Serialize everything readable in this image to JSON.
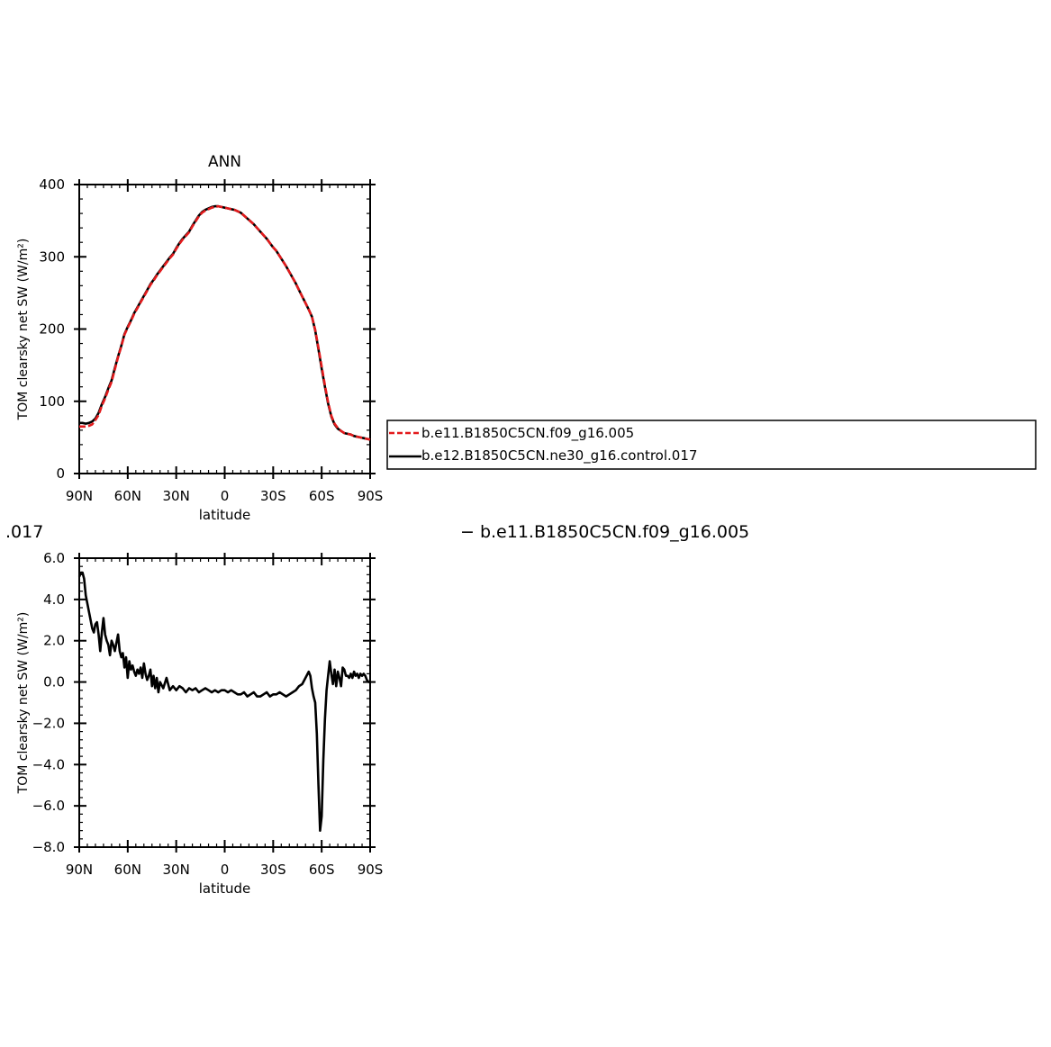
{
  "chart_data": [
    {
      "type": "line",
      "title": "ANN",
      "xlabel": "latitude",
      "ylabel": "TOM clearsky net SW (W/m²)",
      "xlim": [
        90,
        -90
      ],
      "ylim": [
        0,
        400
      ],
      "xticks": [
        {
          "v": 90,
          "label": "90N"
        },
        {
          "v": 60,
          "label": "60N"
        },
        {
          "v": 30,
          "label": "30N"
        },
        {
          "v": 0,
          "label": "0"
        },
        {
          "v": -30,
          "label": "30S"
        },
        {
          "v": -60,
          "label": "60S"
        },
        {
          "v": -90,
          "label": "90S"
        }
      ],
      "yticks": [
        {
          "v": 0,
          "label": "0"
        },
        {
          "v": 100,
          "label": "100"
        },
        {
          "v": 200,
          "label": "200"
        },
        {
          "v": 300,
          "label": "300"
        },
        {
          "v": 400,
          "label": "400"
        }
      ],
      "legend_position": "right",
      "series": [
        {
          "name": "b.e12.B1850C5CN.ne30_g16.control.017",
          "color": "#000000",
          "dash": "solid",
          "x": [
            90,
            88,
            86,
            84,
            82,
            80,
            78,
            76,
            74,
            72,
            70,
            68,
            66,
            64,
            62,
            60,
            58,
            56,
            54,
            52,
            50,
            48,
            46,
            44,
            42,
            40,
            38,
            36,
            34,
            32,
            30,
            28,
            26,
            24,
            22,
            20,
            18,
            16,
            14,
            12,
            10,
            8,
            6,
            4,
            2,
            0,
            -2,
            -4,
            -6,
            -8,
            -10,
            -12,
            -14,
            -16,
            -18,
            -20,
            -22,
            -24,
            -26,
            -28,
            -30,
            -32,
            -34,
            -36,
            -38,
            -40,
            -42,
            -44,
            -46,
            -48,
            -50,
            -52,
            -54,
            -56,
            -58,
            -60,
            -62,
            -64,
            -66,
            -68,
            -70,
            -72,
            -74,
            -76,
            -78,
            -80,
            -82,
            -84,
            -86,
            -88,
            -90
          ],
          "values": [
            70,
            70,
            69,
            70,
            72,
            76,
            84,
            96,
            106,
            118,
            129,
            146,
            162,
            177,
            193,
            203,
            212,
            222,
            230,
            238,
            246,
            254,
            262,
            268,
            275,
            281,
            287,
            293,
            299,
            304,
            312,
            319,
            325,
            330,
            335,
            343,
            350,
            357,
            362,
            365,
            367,
            369,
            370,
            370,
            369,
            368,
            367,
            366,
            365,
            363,
            361,
            357,
            353,
            349,
            345,
            340,
            335,
            330,
            325,
            319,
            313,
            308,
            301,
            294,
            287,
            279,
            271,
            263,
            254,
            245,
            236,
            227,
            217,
            198,
            172,
            145,
            120,
            97,
            79,
            68,
            62,
            59,
            56,
            55,
            54,
            52,
            51,
            50,
            49,
            48,
            47
          ]
        },
        {
          "name": "b.e11.B1850C5CN.f09_g16.005",
          "color": "#e31a1c",
          "dash": "dashed",
          "x": [
            90,
            88,
            86,
            84,
            82,
            80,
            78,
            76,
            74,
            72,
            70,
            68,
            66,
            64,
            62,
            60,
            58,
            56,
            54,
            52,
            50,
            48,
            46,
            44,
            42,
            40,
            38,
            36,
            34,
            32,
            30,
            28,
            26,
            24,
            22,
            20,
            18,
            16,
            14,
            12,
            10,
            8,
            6,
            4,
            2,
            0,
            -2,
            -4,
            -6,
            -8,
            -10,
            -12,
            -14,
            -16,
            -18,
            -20,
            -22,
            -24,
            -26,
            -28,
            -30,
            -32,
            -34,
            -36,
            -38,
            -40,
            -42,
            -44,
            -46,
            -48,
            -50,
            -52,
            -54,
            -56,
            -58,
            -60,
            -62,
            -64,
            -66,
            -68,
            -70,
            -72,
            -74,
            -76,
            -78,
            -80,
            -82,
            -84,
            -86,
            -88,
            -90
          ],
          "values": [
            65,
            65,
            65,
            66,
            68,
            74,
            81,
            94,
            104,
            116,
            127,
            144,
            161,
            176,
            192,
            202,
            211,
            221,
            229,
            237,
            245,
            253,
            261,
            267,
            274,
            280,
            286,
            292,
            298,
            303,
            311,
            318,
            324,
            329,
            334,
            342,
            349,
            356,
            361,
            364,
            366,
            368,
            369,
            370,
            369,
            368,
            367,
            366,
            365,
            363,
            361,
            357,
            353,
            349,
            345,
            340,
            335,
            330,
            325,
            319,
            313,
            308,
            301,
            294,
            287,
            279,
            271,
            263,
            254,
            245,
            236,
            227,
            217,
            199,
            174,
            148,
            122,
            99,
            80,
            69,
            63,
            59,
            56,
            55,
            54,
            52,
            51,
            50,
            49,
            48,
            47
          ]
        }
      ]
    },
    {
      "type": "line",
      "title": "",
      "xlabel": "latitude",
      "ylabel": "TOM clearsky net SW (W/m²)",
      "xlim": [
        90,
        -90
      ],
      "ylim": [
        -8,
        6
      ],
      "xticks": [
        {
          "v": 90,
          "label": "90N"
        },
        {
          "v": 60,
          "label": "60N"
        },
        {
          "v": 30,
          "label": "30N"
        },
        {
          "v": 0,
          "label": "0"
        },
        {
          "v": -30,
          "label": "30S"
        },
        {
          "v": -60,
          "label": "60S"
        },
        {
          "v": -90,
          "label": "90S"
        }
      ],
      "yticks": [
        {
          "v": -8,
          "label": "−8.0"
        },
        {
          "v": -6,
          "label": "−6.0"
        },
        {
          "v": -4,
          "label": "−4.0"
        },
        {
          "v": -2,
          "label": "−2.0"
        },
        {
          "v": 0,
          "label": "0.0"
        },
        {
          "v": 2,
          "label": "2.0"
        },
        {
          "v": 4,
          "label": "4.0"
        },
        {
          "v": 6,
          "label": "6.0"
        }
      ],
      "series": [
        {
          "color": "#000000",
          "dash": "solid",
          "x": [
            90,
            89,
            88,
            87,
            86,
            85,
            84,
            83,
            82,
            81,
            80,
            79,
            78,
            77,
            76,
            75,
            74,
            73,
            72,
            71,
            70,
            69,
            68,
            67,
            66,
            65,
            64,
            63,
            62,
            61,
            60,
            59,
            58,
            57,
            56,
            55,
            54,
            53,
            52,
            51,
            50,
            49,
            48,
            47,
            46,
            45,
            44,
            43,
            42,
            41,
            40,
            38,
            36,
            34,
            32,
            30,
            28,
            26,
            24,
            22,
            20,
            18,
            16,
            14,
            12,
            10,
            8,
            6,
            4,
            2,
            0,
            -2,
            -4,
            -6,
            -8,
            -10,
            -12,
            -14,
            -16,
            -18,
            -20,
            -22,
            -24,
            -26,
            -28,
            -30,
            -32,
            -34,
            -36,
            -38,
            -40,
            -42,
            -44,
            -46,
            -48,
            -50,
            -52,
            -53,
            -54,
            -55,
            -56,
            -57,
            -58,
            -59,
            -60,
            -61,
            -62,
            -63,
            -64,
            -65,
            -66,
            -67,
            -68,
            -69,
            -70,
            -71,
            -72,
            -73,
            -74,
            -75,
            -76,
            -77,
            -78,
            -79,
            -80,
            -81,
            -82,
            -83,
            -84,
            -85,
            -86,
            -87,
            -88,
            -89,
            -90
          ],
          "values": [
            5.1,
            5.3,
            5.3,
            5.0,
            4.2,
            3.8,
            3.4,
            3.0,
            2.6,
            2.4,
            2.8,
            2.9,
            2.3,
            1.5,
            2.4,
            3.1,
            2.3,
            2.0,
            1.8,
            1.3,
            2.0,
            1.8,
            1.5,
            1.9,
            2.3,
            1.5,
            1.2,
            1.4,
            0.7,
            1.2,
            0.2,
            1.0,
            0.6,
            0.8,
            0.5,
            0.3,
            0.6,
            0.4,
            0.7,
            0.2,
            0.9,
            0.4,
            0.1,
            0.3,
            0.6,
            -0.2,
            0.3,
            -0.3,
            0.2,
            -0.5,
            0.0,
            -0.3,
            0.2,
            -0.4,
            -0.2,
            -0.4,
            -0.2,
            -0.3,
            -0.5,
            -0.3,
            -0.4,
            -0.3,
            -0.5,
            -0.4,
            -0.3,
            -0.4,
            -0.5,
            -0.4,
            -0.5,
            -0.4,
            -0.4,
            -0.5,
            -0.4,
            -0.5,
            -0.6,
            -0.6,
            -0.5,
            -0.7,
            -0.6,
            -0.5,
            -0.7,
            -0.7,
            -0.6,
            -0.5,
            -0.7,
            -0.6,
            -0.6,
            -0.5,
            -0.6,
            -0.7,
            -0.6,
            -0.5,
            -0.4,
            -0.2,
            -0.1,
            0.2,
            0.5,
            0.3,
            -0.3,
            -0.7,
            -1.0,
            -2.5,
            -5.0,
            -7.2,
            -6.5,
            -3.8,
            -1.8,
            -0.4,
            0.3,
            1.0,
            0.4,
            -0.1,
            0.6,
            -0.2,
            0.5,
            0.2,
            -0.2,
            0.7,
            0.6,
            0.3,
            0.3,
            0.2,
            0.4,
            0.2,
            0.5,
            0.3,
            0.4,
            0.2,
            0.4,
            0.3,
            0.4,
            0.3,
            0.1,
            0.0,
            0.0
          ]
        }
      ]
    }
  ],
  "legend_partial": {
    "left_fragment": ".017",
    "right_entry": "−  b.e11.B1850C5CN.f09_g16.005"
  }
}
